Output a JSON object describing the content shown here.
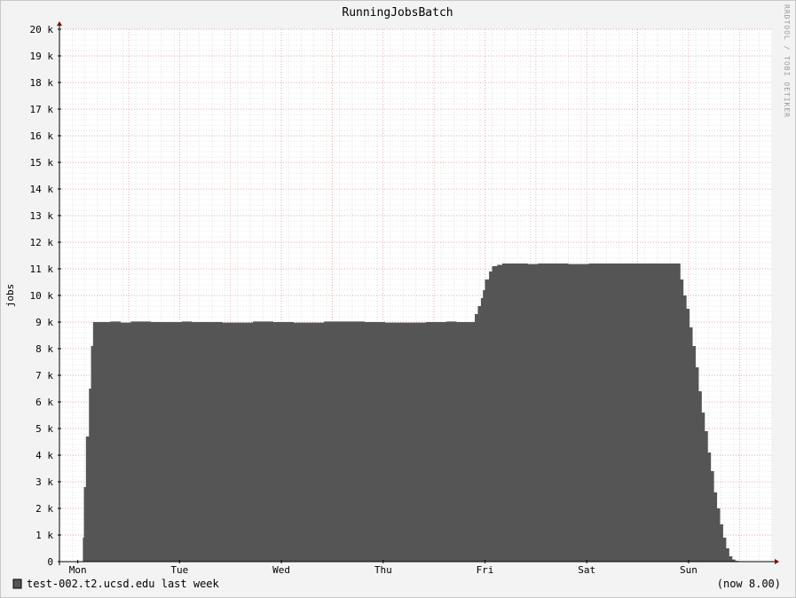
{
  "chart_data": {
    "type": "area",
    "title": "RunningJobsBatch",
    "ylabel": "jobs",
    "xlabel": "",
    "ylim": [
      0,
      20000
    ],
    "y_ticks": [
      {
        "value": 0,
        "label": "0"
      },
      {
        "value": 1000,
        "label": "1 k"
      },
      {
        "value": 2000,
        "label": "2 k"
      },
      {
        "value": 3000,
        "label": "3 k"
      },
      {
        "value": 4000,
        "label": "4 k"
      },
      {
        "value": 5000,
        "label": "5 k"
      },
      {
        "value": 6000,
        "label": "6 k"
      },
      {
        "value": 7000,
        "label": "7 k"
      },
      {
        "value": 8000,
        "label": "8 k"
      },
      {
        "value": 9000,
        "label": "9 k"
      },
      {
        "value": 10000,
        "label": "10 k"
      },
      {
        "value": 11000,
        "label": "11 k"
      },
      {
        "value": 12000,
        "label": "12 k"
      },
      {
        "value": 13000,
        "label": "13 k"
      },
      {
        "value": 14000,
        "label": "14 k"
      },
      {
        "value": 15000,
        "label": "15 k"
      },
      {
        "value": 16000,
        "label": "16 k"
      },
      {
        "value": 17000,
        "label": "17 k"
      },
      {
        "value": 18000,
        "label": "18 k"
      },
      {
        "value": 19000,
        "label": "19 k"
      },
      {
        "value": 20000,
        "label": "20 k"
      }
    ],
    "xlim": [
      0,
      7
    ],
    "x_ticks": [
      {
        "value": 0.18,
        "label": "Mon"
      },
      {
        "value": 1.18,
        "label": "Tue"
      },
      {
        "value": 2.18,
        "label": "Wed"
      },
      {
        "value": 3.18,
        "label": "Thu"
      },
      {
        "value": 4.18,
        "label": "Fri"
      },
      {
        "value": 5.18,
        "label": "Sat"
      },
      {
        "value": 6.18,
        "label": "Sun"
      }
    ],
    "grid": true,
    "legend_position": "bottom-left",
    "colors": {
      "area": "#555555",
      "grid_major": "#e08a8a",
      "grid_minor": "#cfcfcf",
      "axis": "#000000",
      "arrow": "#8b0000",
      "background": "#f3f3f3",
      "plot_background": "#ffffff"
    },
    "series": [
      {
        "name": "test-002.t2.ucsd.edu last week",
        "x": [
          0.18,
          0.23,
          0.24,
          0.26,
          0.29,
          0.31,
          0.33,
          0.35,
          0.36,
          0.5,
          0.6,
          0.7,
          0.9,
          1.2,
          1.3,
          1.6,
          1.9,
          2.1,
          2.3,
          2.6,
          3.0,
          3.2,
          3.6,
          3.8,
          3.9,
          4.06,
          4.08,
          4.11,
          4.14,
          4.16,
          4.18,
          4.22,
          4.25,
          4.3,
          4.35,
          4.6,
          4.7,
          5.0,
          5.2,
          5.6,
          6.0,
          6.06,
          6.1,
          6.13,
          6.16,
          6.19,
          6.22,
          6.25,
          6.28,
          6.31,
          6.34,
          6.37,
          6.4,
          6.43,
          6.46,
          6.49,
          6.52,
          6.55,
          6.58,
          6.61,
          6.64,
          6.67,
          6.7,
          6.73,
          6.78,
          6.83,
          6.88,
          6.95,
          7.0
        ],
        "values": [
          0,
          900,
          2800,
          4700,
          6500,
          8100,
          9000,
          9000,
          9000,
          9020,
          8980,
          9020,
          9000,
          9020,
          9000,
          8980,
          9020,
          9000,
          8980,
          9020,
          9000,
          8980,
          9000,
          9020,
          9000,
          9000,
          9300,
          9600,
          9900,
          10200,
          10600,
          10900,
          11100,
          11150,
          11200,
          11180,
          11200,
          11180,
          11200,
          11200,
          11200,
          11200,
          10600,
          10000,
          9500,
          8800,
          8100,
          7300,
          6400,
          5600,
          4900,
          4100,
          3400,
          2600,
          2000,
          1400,
          900,
          500,
          200,
          80,
          30,
          10,
          0,
          0,
          0,
          0,
          0,
          0,
          0
        ]
      }
    ]
  },
  "legend": {
    "series_label": "test-002.t2.ucsd.edu last week",
    "now_label": "(now 8.00)"
  },
  "watermark": "RRDTOOL / TOBI OETIKER"
}
